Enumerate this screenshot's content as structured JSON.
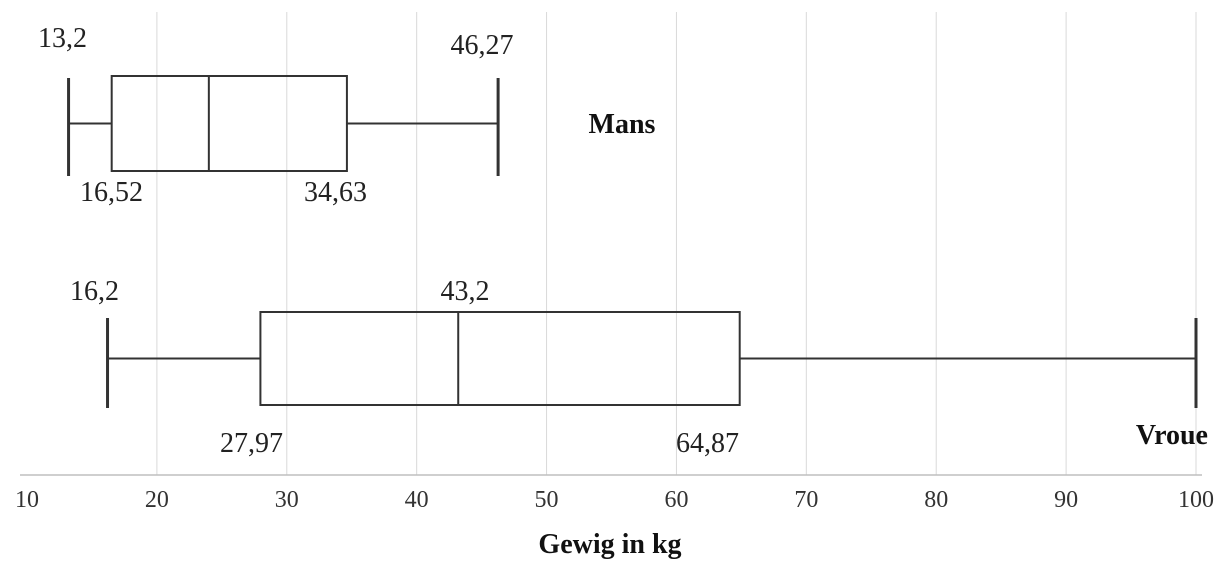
{
  "chart_data": {
    "type": "boxplot",
    "xlabel": "Gewig in kg",
    "xlim": [
      10,
      100
    ],
    "xticks": [
      10,
      20,
      30,
      40,
      50,
      60,
      70,
      80,
      90,
      100
    ],
    "grid": "vertical",
    "series": [
      {
        "name": "Mans",
        "min": 13.2,
        "q1": 16.52,
        "median": 24,
        "q3": 34.63,
        "max": 46.27,
        "labels": {
          "min": "13,2",
          "q1": "16,52",
          "q3": "34,63",
          "max": "46,27"
        }
      },
      {
        "name": "Vroue",
        "min": 16.2,
        "q1": 27.97,
        "median": 43.2,
        "q3": 64.87,
        "max": 100,
        "labels": {
          "min": "16,2",
          "q1": "27,97",
          "median": "43,2",
          "q3": "64,87"
        }
      }
    ]
  }
}
